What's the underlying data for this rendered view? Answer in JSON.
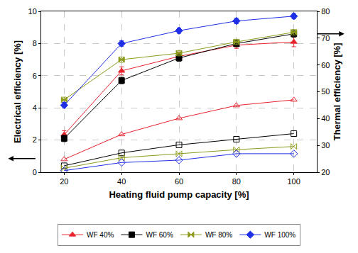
{
  "chart_data": {
    "type": "line",
    "x_label": "Heating fluid pump capacity [%]",
    "y_label": "Electrical efficiency [%]",
    "y2_label": "Thermal efficiency [%]",
    "x": [
      20,
      40,
      60,
      80,
      100
    ],
    "xlim": [
      12,
      108
    ],
    "xticks": [
      20,
      40,
      60,
      80,
      100
    ],
    "ylim": [
      0,
      10
    ],
    "yticks": [
      0,
      2,
      4,
      6,
      8,
      10
    ],
    "y2lim": [
      20,
      80
    ],
    "y2ticks": [
      20,
      30,
      40,
      50,
      60,
      70,
      80
    ],
    "grid": true,
    "legend": "bottom",
    "series": [
      {
        "name": "WF 40%",
        "color": "#e8232e",
        "marker": "triangle",
        "axis": "y2",
        "values": [
          34.0,
          57.8,
          63.2,
          67.4,
          68.6
        ],
        "error": [
          1.5,
          1.5,
          1.5,
          1.2,
          1.8
        ]
      },
      {
        "name": "WF 60%",
        "color": "#000000",
        "marker": "square",
        "axis": "y2",
        "values": [
          32.6,
          54.2,
          62.6,
          68.0,
          71.6
        ],
        "error": [
          1.2,
          1.2,
          1.2,
          1.2,
          1.2
        ]
      },
      {
        "name": "WF 80%",
        "color": "#8c9a1c",
        "marker": "bowtie",
        "axis": "y2",
        "values": [
          47.0,
          62.0,
          64.4,
          68.6,
          72.2
        ],
        "error": [
          1.0,
          1.0,
          1.0,
          1.0,
          1.0
        ]
      },
      {
        "name": "WF 100%",
        "color": "#1f2fe6",
        "marker": "diamond",
        "axis": "y2",
        "values": [
          45.0,
          68.0,
          72.8,
          76.4,
          78.2
        ],
        "error": [
          1.0,
          1.0,
          1.0,
          1.0,
          1.0
        ]
      },
      {
        "name": "WF 40%",
        "color": "#e8232e",
        "marker": "open triangle",
        "values": [
          0.8,
          2.35,
          3.35,
          4.15,
          4.5
        ]
      },
      {
        "name": "WF 60%",
        "color": "#000000",
        "marker": "open square",
        "values": [
          0.4,
          1.2,
          1.7,
          2.05,
          2.4
        ]
      },
      {
        "name": "WF 80%",
        "color": "#8c9a1c",
        "marker": "open bowtie",
        "values": [
          0.25,
          0.9,
          1.15,
          1.4,
          1.6
        ]
      },
      {
        "name": "WF 100%",
        "color": "#1f2fe6",
        "marker": "open diamond",
        "values": [
          0.1,
          0.6,
          0.75,
          1.15,
          1.15
        ]
      }
    ]
  }
}
